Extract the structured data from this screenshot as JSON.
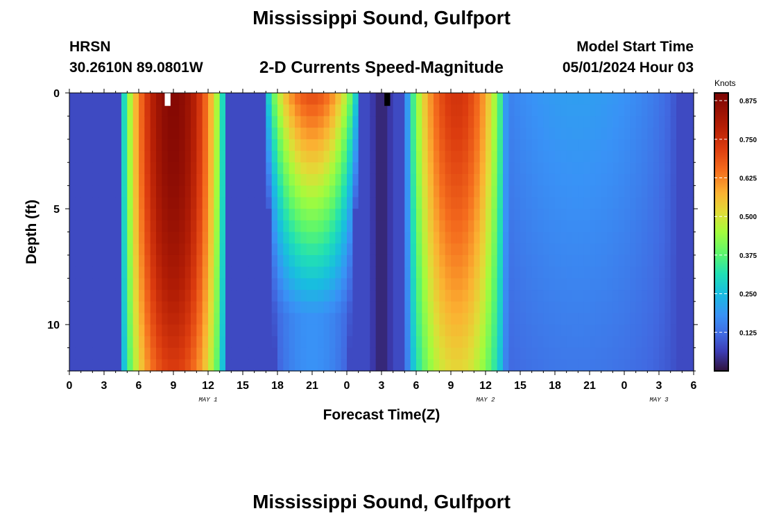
{
  "header": {
    "title": "Mississippi Sound, Gulfport",
    "station": "HRSN",
    "coordinates": "30.2610N  89.0801W",
    "subtitle": "2-D Currents Speed-Magnitude",
    "model_start_label": "Model Start Time",
    "model_start_value": "05/01/2024 Hour 03"
  },
  "footer": {
    "title": "Mississippi Sound, Gulfport"
  },
  "chart_data": {
    "type": "heatmap",
    "title": "2-D Currents Speed-Magnitude",
    "xlabel": "Forecast Time(Z)",
    "ylabel": "Depth (ft)",
    "x_tick_labels": [
      "0",
      "3",
      "6",
      "9",
      "12",
      "15",
      "18",
      "21",
      "0",
      "3",
      "6",
      "9",
      "12",
      "15",
      "18",
      "21",
      "0",
      "3",
      "6"
    ],
    "date_labels": [
      {
        "text": "MAY 1",
        "at_tick": 4
      },
      {
        "text": "MAY 2",
        "at_tick": 12
      },
      {
        "text": "MAY 3",
        "at_tick": 17
      }
    ],
    "x_range_hours": [
      0,
      54
    ],
    "y_range_ft": [
      0,
      12
    ],
    "y_ticks": [
      0,
      5,
      10
    ],
    "y_inverted": true,
    "grid": false,
    "colorbar": {
      "units": "Knots",
      "range": [
        0,
        0.9
      ],
      "tick_values": [
        0.125,
        0.25,
        0.375,
        0.5,
        0.625,
        0.75,
        0.875
      ],
      "tick_labels": [
        "0.125",
        "0.250",
        "0.375",
        "0.500",
        "0.625",
        "0.750",
        "0.875"
      ],
      "colormap": "turbo"
    },
    "flood_ebb_events": [
      {
        "center_hour": 9.0,
        "half_width_hours": 4.6,
        "surface_peak": 0.88,
        "bottom_peak": 0.72,
        "decay": "slow"
      },
      {
        "center_hour": 21.0,
        "half_width_hours": 4.2,
        "surface_peak": 0.7,
        "bottom_peak": 0.18,
        "decay": "fast"
      },
      {
        "center_hour": 33.5,
        "half_width_hours": 4.4,
        "surface_peak": 0.74,
        "bottom_peak": 0.52,
        "decay": "medium"
      },
      {
        "center_hour": 44.0,
        "half_width_hours": 8.5,
        "surface_peak": 0.2,
        "bottom_peak": 0.14,
        "decay": "flat"
      }
    ],
    "background_speed": 0.08,
    "slack_minimum_hour": 27.0,
    "slack_minimum_speed": 0.02,
    "missing_cells": [
      {
        "hour": 8.5,
        "depth_ft": 0.5,
        "color": "#ffffff"
      },
      {
        "hour": 27.5,
        "depth_ft": 0.5,
        "color": "#000000"
      }
    ]
  }
}
